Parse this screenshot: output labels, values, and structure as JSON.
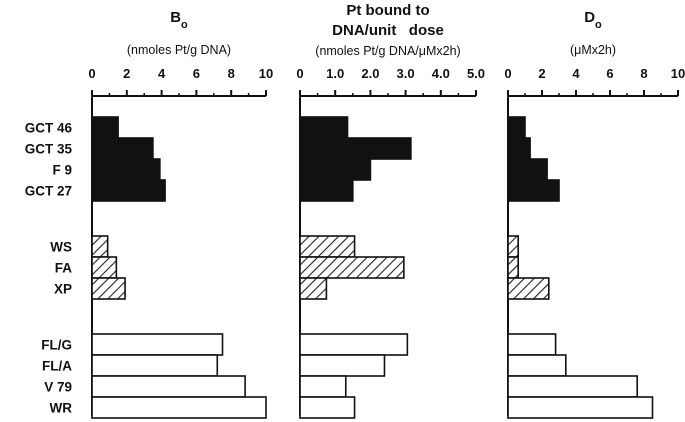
{
  "chart_data": {
    "type": "bar",
    "orientation": "horizontal",
    "categories": [
      "GCT 46",
      "GCT 35",
      "F 9",
      "GCT 27",
      "WS",
      "FA",
      "XP",
      "FL/G",
      "FL/A",
      "V 79",
      "WR"
    ],
    "groups": [
      {
        "members": [
          "GCT 46",
          "GCT 35",
          "F 9",
          "GCT 27"
        ],
        "fill": "solid"
      },
      {
        "members": [
          "WS",
          "FA",
          "XP"
        ],
        "fill": "hatched"
      },
      {
        "members": [
          "FL/G",
          "FL/A",
          "V 79",
          "WR"
        ],
        "fill": "open"
      }
    ],
    "panels": [
      {
        "title_main": "B",
        "title_sub": "o",
        "title_line2": "",
        "units": "(nmoles Pt/g DNA)",
        "xlim": [
          0,
          10
        ],
        "ticks": [
          "0",
          "2",
          "4",
          "6",
          "8",
          "10"
        ],
        "values": [
          1.5,
          3.5,
          3.9,
          4.2,
          0.9,
          1.4,
          1.9,
          7.5,
          7.2,
          8.8,
          10.0
        ]
      },
      {
        "title_main": "Pt bound to",
        "title_sub": "",
        "title_line2": "DNA/unit   dose",
        "units": "(nmoles Pt/g DNA/μMx2h)",
        "xlim": [
          0,
          5
        ],
        "ticks": [
          "0",
          "1.0",
          "2.0",
          "3.0",
          "4.0",
          "5.0"
        ],
        "values": [
          1.35,
          3.15,
          2.0,
          1.5,
          1.55,
          2.95,
          0.75,
          3.05,
          2.4,
          1.3,
          1.55
        ]
      },
      {
        "title_main": "D",
        "title_sub": "o",
        "title_line2": "",
        "units": "(μMx2h)",
        "xlim": [
          0,
          10
        ],
        "ticks": [
          "0",
          "2",
          "4",
          "6",
          "8",
          "10"
        ],
        "values": [
          1.0,
          1.3,
          2.3,
          3.0,
          0.6,
          0.6,
          2.4,
          2.8,
          3.4,
          7.6,
          8.5
        ]
      }
    ]
  },
  "colors": {
    "solid": "#111111",
    "hatch": "#222222",
    "open": "#ffffff",
    "axis": "#111111"
  }
}
